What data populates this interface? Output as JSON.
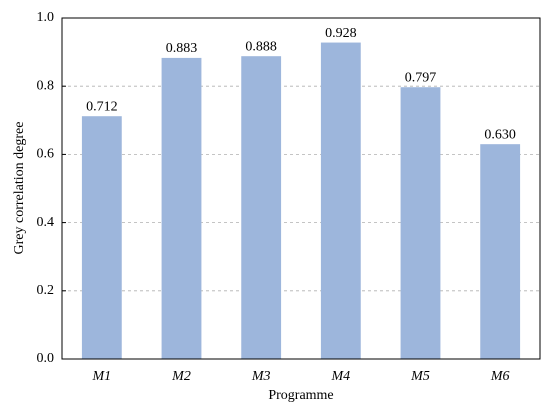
{
  "chart_data": {
    "type": "bar",
    "x_label": "Programme",
    "y_label": "Grey correlation degree",
    "categories": [
      "M1",
      "M2",
      "M3",
      "M4",
      "M5",
      "M6"
    ],
    "values": [
      0.712,
      0.883,
      0.888,
      0.928,
      0.797,
      0.63
    ],
    "value_labels": [
      "0.712",
      "0.883",
      "0.888",
      "0.928",
      "0.797",
      "0.630"
    ],
    "color": "#9db6dc",
    "ylim": [
      0,
      1
    ],
    "yticks": [
      {
        "value": 0,
        "label": "0.0"
      },
      0.2,
      0.4,
      0.6,
      0.8,
      {
        "value": 1,
        "label": "1.0"
      }
    ],
    "grid": true
  }
}
